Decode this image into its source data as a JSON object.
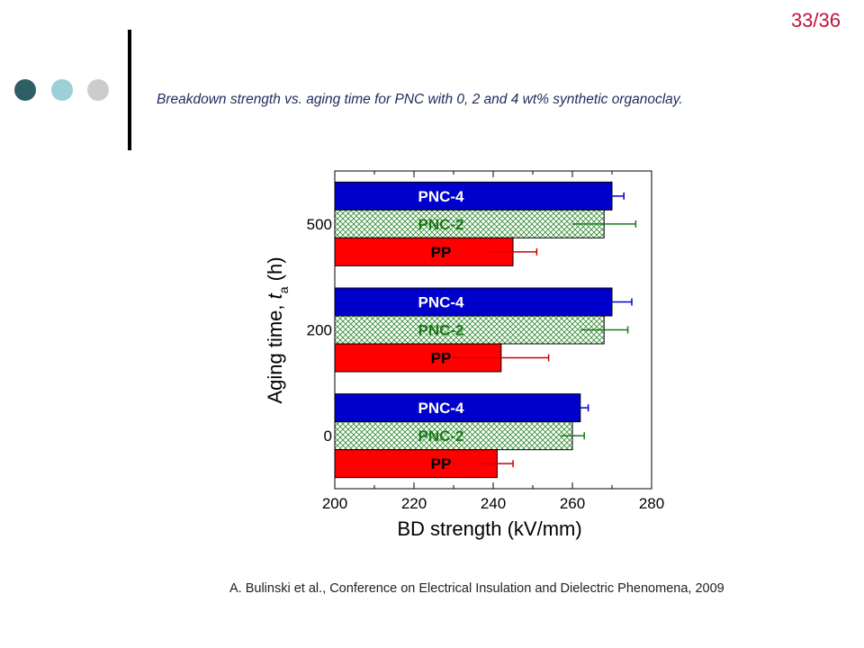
{
  "slide": {
    "page_number": "33/36",
    "caption": "Breakdown strength vs. aging time for PNC with 0, 2 and 4 wt% synthetic organoclay.",
    "citation": "A. Bulinski et al., Conference on Electrical Insulation and Dielectric Phenomena, 2009",
    "dot_colors": [
      "#2e5e66",
      "#9ccfd6",
      "#cccccc"
    ]
  },
  "chart_data": {
    "type": "bar",
    "orientation": "horizontal",
    "title": "",
    "xlabel": "BD strength (kV/mm)",
    "ylabel_main": "Aging time, ",
    "ylabel_var": "t",
    "ylabel_sub": "a",
    "ylabel_unit": " (h)",
    "xlim": [
      200,
      280
    ],
    "x_ticks": [
      200,
      220,
      240,
      260,
      280
    ],
    "categories": [
      "0",
      "200",
      "500"
    ],
    "grid": false,
    "series": [
      {
        "name": "PNC-4",
        "fill": "#0000cc",
        "pattern": "solid",
        "label_color": "#ffffff",
        "error_color": "#0000cc",
        "values": [
          262,
          270,
          270
        ],
        "errors": [
          2,
          5,
          3
        ]
      },
      {
        "name": "PNC-2",
        "fill": "#ffffff",
        "pattern": "crosshatch",
        "hatch_color": "#2e8b2e",
        "label_color": "#1a7a1a",
        "error_color": "#1a7a1a",
        "values": [
          260,
          268,
          268
        ],
        "errors": [
          3,
          6,
          8
        ]
      },
      {
        "name": "PP",
        "fill": "#ff0000",
        "pattern": "solid",
        "label_color": "#000000",
        "error_color": "#cc0000",
        "values": [
          241,
          242,
          245
        ],
        "errors": [
          4,
          12,
          6
        ]
      }
    ]
  }
}
